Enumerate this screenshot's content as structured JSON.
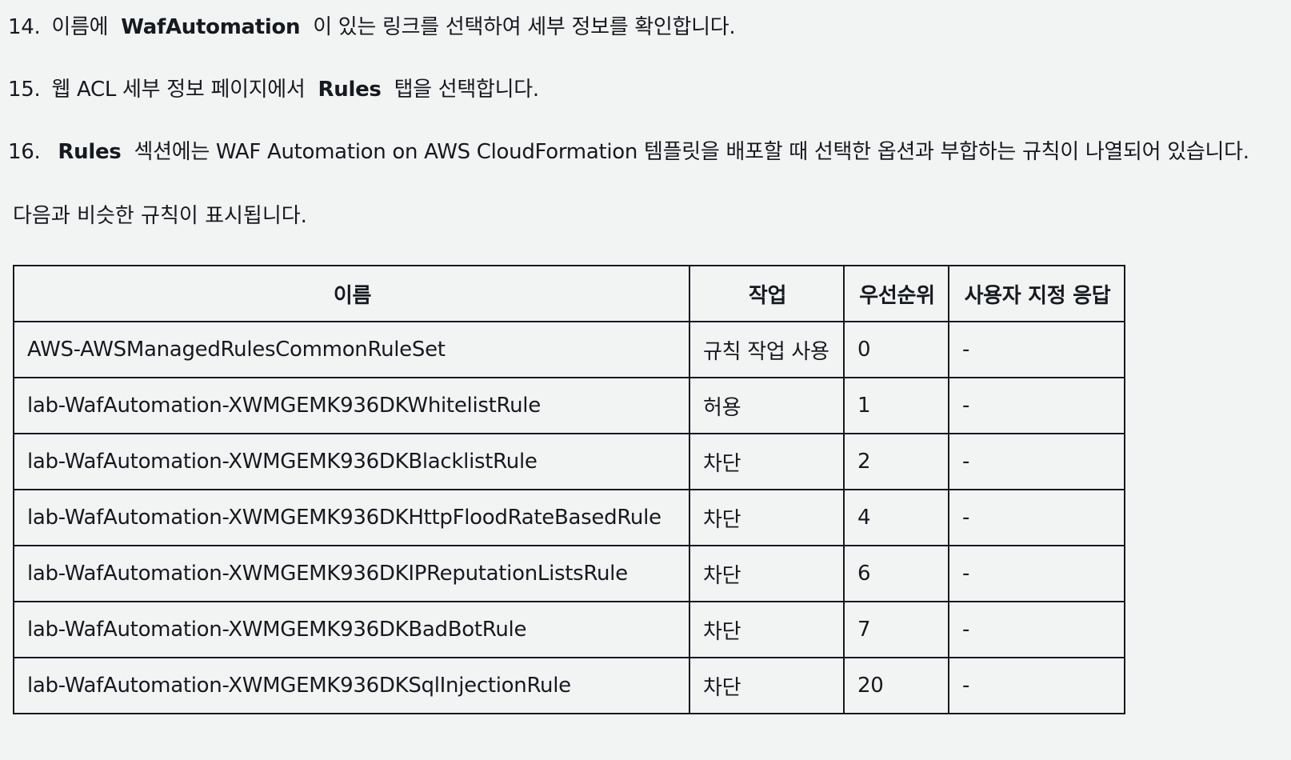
{
  "steps": [
    {
      "number": "14.",
      "text_before": "이름에",
      "bold": "WafAutomation",
      "text_after": "이 있는 링크를 선택하여 세부 정보를 확인합니다."
    },
    {
      "number": "15.",
      "text_before": "웹 ACL 세부 정보 페이지에서",
      "bold": "Rules",
      "text_after": "탭을 선택합니다."
    },
    {
      "number": "16.",
      "text_before": "",
      "bold": "Rules",
      "text_after": "섹션에는 WAF Automation on AWS CloudFormation 템플릿을 배포할 때 선택한 옵션과 부합하는 규칙이 나열되어 있습니다."
    }
  ],
  "intro": "다음과 비슷한 규칙이 표시됩니다.",
  "table": {
    "headers": [
      "이름",
      "작업",
      "우선순위",
      "사용자 지정 응답"
    ],
    "rows": [
      [
        "AWS-AWSManagedRulesCommonRuleSet",
        "규칙 작업 사용",
        "0",
        "-"
      ],
      [
        "lab-WafAutomation-XWMGEMK936DKWhitelistRule",
        "허용",
        "1",
        "-"
      ],
      [
        "lab-WafAutomation-XWMGEMK936DKBlacklistRule",
        "차단",
        "2",
        "-"
      ],
      [
        "lab-WafAutomation-XWMGEMK936DKHttpFloodRateBasedRule",
        "차단",
        "4",
        "-"
      ],
      [
        "lab-WafAutomation-XWMGEMK936DKIPReputationListsRule",
        "차단",
        "6",
        "-"
      ],
      [
        "lab-WafAutomation-XWMGEMK936DKBadBotRule",
        "차단",
        "7",
        "-"
      ],
      [
        "lab-WafAutomation-XWMGEMK936DKSqlInjectionRule",
        "차단",
        "20",
        "-"
      ]
    ]
  }
}
